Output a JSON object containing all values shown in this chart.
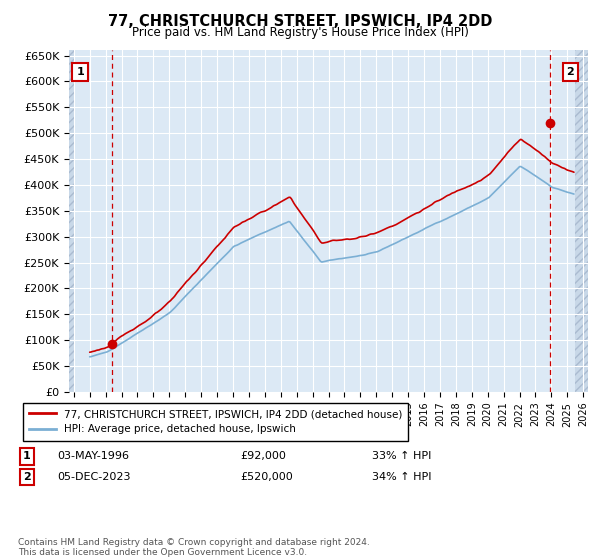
{
  "title": "77, CHRISTCHURCH STREET, IPSWICH, IP4 2DD",
  "subtitle": "Price paid vs. HM Land Registry's House Price Index (HPI)",
  "ylim": [
    0,
    660000
  ],
  "yticks": [
    0,
    50000,
    100000,
    150000,
    200000,
    250000,
    300000,
    350000,
    400000,
    450000,
    500000,
    550000,
    600000,
    650000
  ],
  "ytick_labels": [
    "£0",
    "£50K",
    "£100K",
    "£150K",
    "£200K",
    "£250K",
    "£300K",
    "£350K",
    "£400K",
    "£450K",
    "£500K",
    "£550K",
    "£600K",
    "£650K"
  ],
  "legend1": "77, CHRISTCHURCH STREET, IPSWICH, IP4 2DD (detached house)",
  "legend2": "HPI: Average price, detached house, Ipswich",
  "point1_date": "03-MAY-1996",
  "point1_price": 92000,
  "point1_hpi": "33% ↑ HPI",
  "point2_date": "05-DEC-2023",
  "point2_price": 520000,
  "point2_hpi": "34% ↑ HPI",
  "footer": "Contains HM Land Registry data © Crown copyright and database right 2024.\nThis data is licensed under the Open Government Licence v3.0.",
  "line_color_red": "#cc0000",
  "line_color_blue": "#7bafd4",
  "plot_bg_color": "#dce9f5",
  "background_color": "#ffffff",
  "grid_color": "#ffffff",
  "point1_x": 1996.37,
  "point2_x": 2023.92,
  "xlim_left": 1993.7,
  "xlim_right": 2026.3
}
